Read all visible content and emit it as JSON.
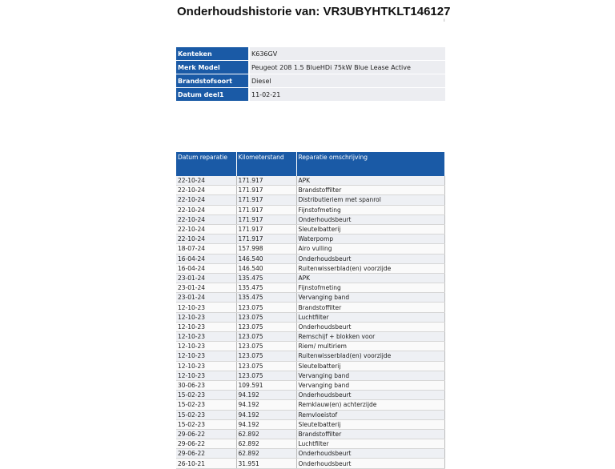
{
  "title": "Onderhoudshistorie van: VR3UBYHTKLT146127",
  "vehicle": [
    {
      "label": "Kenteken",
      "value": "K636GV"
    },
    {
      "label": "Merk Model",
      "value": "Peugeot 208 1.5 BlueHDi 75kW Blue Lease Active"
    },
    {
      "label": "Brandstofsoort",
      "value": "Diesel"
    },
    {
      "label": "Datum deel1",
      "value": "11-02-21"
    }
  ],
  "history": {
    "columns": [
      "Datum reparatie",
      "Kilometerstand",
      "Reparatie omschrijving"
    ],
    "rows": [
      [
        "22-10-24",
        "171.917",
        "APK"
      ],
      [
        "22-10-24",
        "171.917",
        "Brandstoffilter"
      ],
      [
        "22-10-24",
        "171.917",
        "Distributieriem met spanrol"
      ],
      [
        "22-10-24",
        "171.917",
        "Fijnstofmeting"
      ],
      [
        "22-10-24",
        "171.917",
        "Onderhoudsbeurt"
      ],
      [
        "22-10-24",
        "171.917",
        "Sleutelbatterij"
      ],
      [
        "22-10-24",
        "171.917",
        "Waterpomp"
      ],
      [
        "18-07-24",
        "157.998",
        "Airo vulling"
      ],
      [
        "16-04-24",
        "146.540",
        "Onderhoudsbeurt"
      ],
      [
        "16-04-24",
        "146.540",
        "Ruitenwisserblad(en) voorzijde"
      ],
      [
        "23-01-24",
        "135.475",
        "APK"
      ],
      [
        "23-01-24",
        "135.475",
        "Fijnstofmeting"
      ],
      [
        "23-01-24",
        "135.475",
        "Vervanging band"
      ],
      [
        "12-10-23",
        "123.075",
        "Brandstoffilter"
      ],
      [
        "12-10-23",
        "123.075",
        "Luchtfilter"
      ],
      [
        "12-10-23",
        "123.075",
        "Onderhoudsbeurt"
      ],
      [
        "12-10-23",
        "123.075",
        "Remschijf + blokken voor"
      ],
      [
        "12-10-23",
        "123.075",
        "Riem/ multiriem"
      ],
      [
        "12-10-23",
        "123.075",
        "Ruitenwisserblad(en) voorzijde"
      ],
      [
        "12-10-23",
        "123.075",
        "Sleutelbatterij"
      ],
      [
        "12-10-23",
        "123.075",
        "Vervanging band"
      ],
      [
        "30-06-23",
        "109.591",
        "Vervanging band"
      ],
      [
        "15-02-23",
        "94.192",
        "Onderhoudsbeurt"
      ],
      [
        "15-02-23",
        "94.192",
        "Remklauw(en) achterzijde"
      ],
      [
        "15-02-23",
        "94.192",
        "Remvloeistof"
      ],
      [
        "15-02-23",
        "94.192",
        "Sleutelbatterij"
      ],
      [
        "29-06-22",
        "62.892",
        "Brandstoffilter"
      ],
      [
        "29-06-22",
        "62.892",
        "Luchtfilter"
      ],
      [
        "29-06-22",
        "62.892",
        "Onderhoudsbeurt"
      ],
      [
        "26-10-21",
        "31.951",
        "Onderhoudsbeurt"
      ]
    ]
  }
}
